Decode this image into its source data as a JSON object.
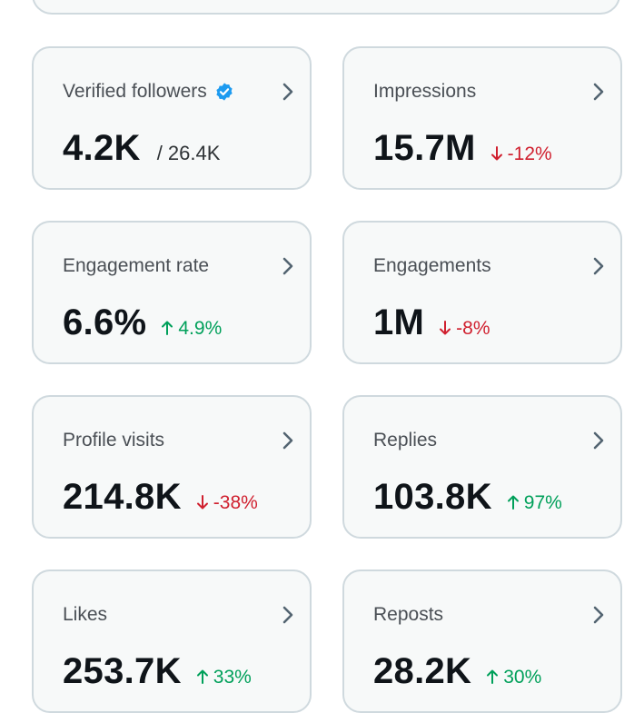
{
  "colors": {
    "card_background": "#f7f9f9",
    "card_border": "#cfd9de",
    "verified_badge": "#1d9bf0",
    "trend_up": "#00a05a",
    "trend_down": "#d0202f"
  },
  "metrics": [
    {
      "title": "Verified followers",
      "value": "4.2K",
      "total": "/ 26.4K",
      "verified_icon": "verified-badge-icon"
    },
    {
      "title": "Impressions",
      "value": "15.7M",
      "change": "-12%",
      "direction": "down"
    },
    {
      "title": "Engagement rate",
      "value": "6.6%",
      "change": "4.9%",
      "direction": "up"
    },
    {
      "title": "Engagements",
      "value": "1M",
      "change": "-8%",
      "direction": "down"
    },
    {
      "title": "Profile visits",
      "value": "214.8K",
      "change": "-38%",
      "direction": "down"
    },
    {
      "title": "Replies",
      "value": "103.8K",
      "change": "97%",
      "direction": "up"
    },
    {
      "title": "Likes",
      "value": "253.7K",
      "change": "33%",
      "direction": "up"
    },
    {
      "title": "Reposts",
      "value": "28.2K",
      "change": "30%",
      "direction": "up"
    }
  ]
}
